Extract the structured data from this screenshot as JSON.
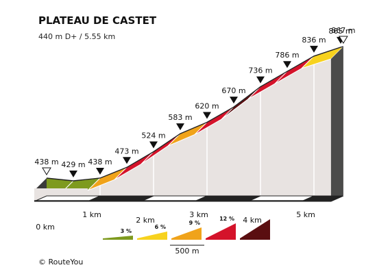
{
  "chart_data": {
    "type": "area",
    "title": "PLATEAU DE CASTET",
    "subtitle": "440 m D+ / 5.55 km",
    "points": [
      {
        "km": 0.0,
        "elev": 438,
        "label": "438 m",
        "marker": "start"
      },
      {
        "km": 0.5,
        "elev": 429,
        "label": "429 m",
        "marker": "point"
      },
      {
        "km": 1.0,
        "elev": 438,
        "label": "438 m",
        "marker": "point"
      },
      {
        "km": 1.5,
        "elev": 473,
        "label": "473 m",
        "marker": "point"
      },
      {
        "km": 2.0,
        "elev": 524,
        "label": "524 m",
        "marker": "point"
      },
      {
        "km": 2.5,
        "elev": 583,
        "label": "583 m",
        "marker": "point"
      },
      {
        "km": 3.0,
        "elev": 620,
        "label": "620 m",
        "marker": "point"
      },
      {
        "km": 3.5,
        "elev": 670,
        "label": "670 m",
        "marker": "point"
      },
      {
        "km": 4.0,
        "elev": 736,
        "label": "736 m",
        "marker": "point"
      },
      {
        "km": 4.5,
        "elev": 786,
        "label": "786 m",
        "marker": "point"
      },
      {
        "km": 5.0,
        "elev": 836,
        "label": "836 m",
        "marker": "point"
      },
      {
        "km": 5.5,
        "elev": 865,
        "label": "865 m",
        "marker": "point"
      },
      {
        "km": 5.55,
        "elev": 867,
        "label": "867 m",
        "marker": "end"
      }
    ],
    "segments": [
      {
        "from_km": 0.0,
        "to_km": 0.5,
        "category": "3"
      },
      {
        "from_km": 0.5,
        "to_km": 1.0,
        "category": "3"
      },
      {
        "from_km": 1.0,
        "to_km": 1.5,
        "category": "9"
      },
      {
        "from_km": 1.5,
        "to_km": 2.0,
        "category": "12"
      },
      {
        "from_km": 2.0,
        "to_km": 2.5,
        "category": "12"
      },
      {
        "from_km": 2.5,
        "to_km": 3.0,
        "category": "9"
      },
      {
        "from_km": 3.0,
        "to_km": 3.5,
        "category": "12"
      },
      {
        "from_km": 3.5,
        "to_km": 4.0,
        "category": "12+"
      },
      {
        "from_km": 4.0,
        "to_km": 4.5,
        "category": "12"
      },
      {
        "from_km": 4.5,
        "to_km": 5.0,
        "category": "12"
      },
      {
        "from_km": 5.0,
        "to_km": 5.55,
        "category": "6"
      }
    ],
    "x_ticks": [
      {
        "km": 0,
        "label": "0 km"
      },
      {
        "km": 1,
        "label": "1 km"
      },
      {
        "km": 2,
        "label": "2 km"
      },
      {
        "km": 3,
        "label": "3 km"
      },
      {
        "km": 4,
        "label": "4 km"
      },
      {
        "km": 5,
        "label": "5 km"
      }
    ],
    "legend": [
      {
        "label": "3 %",
        "color": "#7e9a1e"
      },
      {
        "label": "6 %",
        "color": "#f7d21e"
      },
      {
        "label": "9 %",
        "color": "#f0a31a"
      },
      {
        "label": "12 %",
        "color": "#d4132a"
      },
      {
        "label": "",
        "color": "#5a0e10"
      }
    ],
    "scale_label": "500 m",
    "colors": {
      "3": "#7e9a1e",
      "6": "#f7d21e",
      "9": "#f0a31a",
      "12": "#d4132a",
      "12+": "#5a0e10",
      "body": "#e8e3e1",
      "side": "#3a3a3a",
      "edge": "#555555"
    }
  },
  "copyright": "©  RouteYou"
}
